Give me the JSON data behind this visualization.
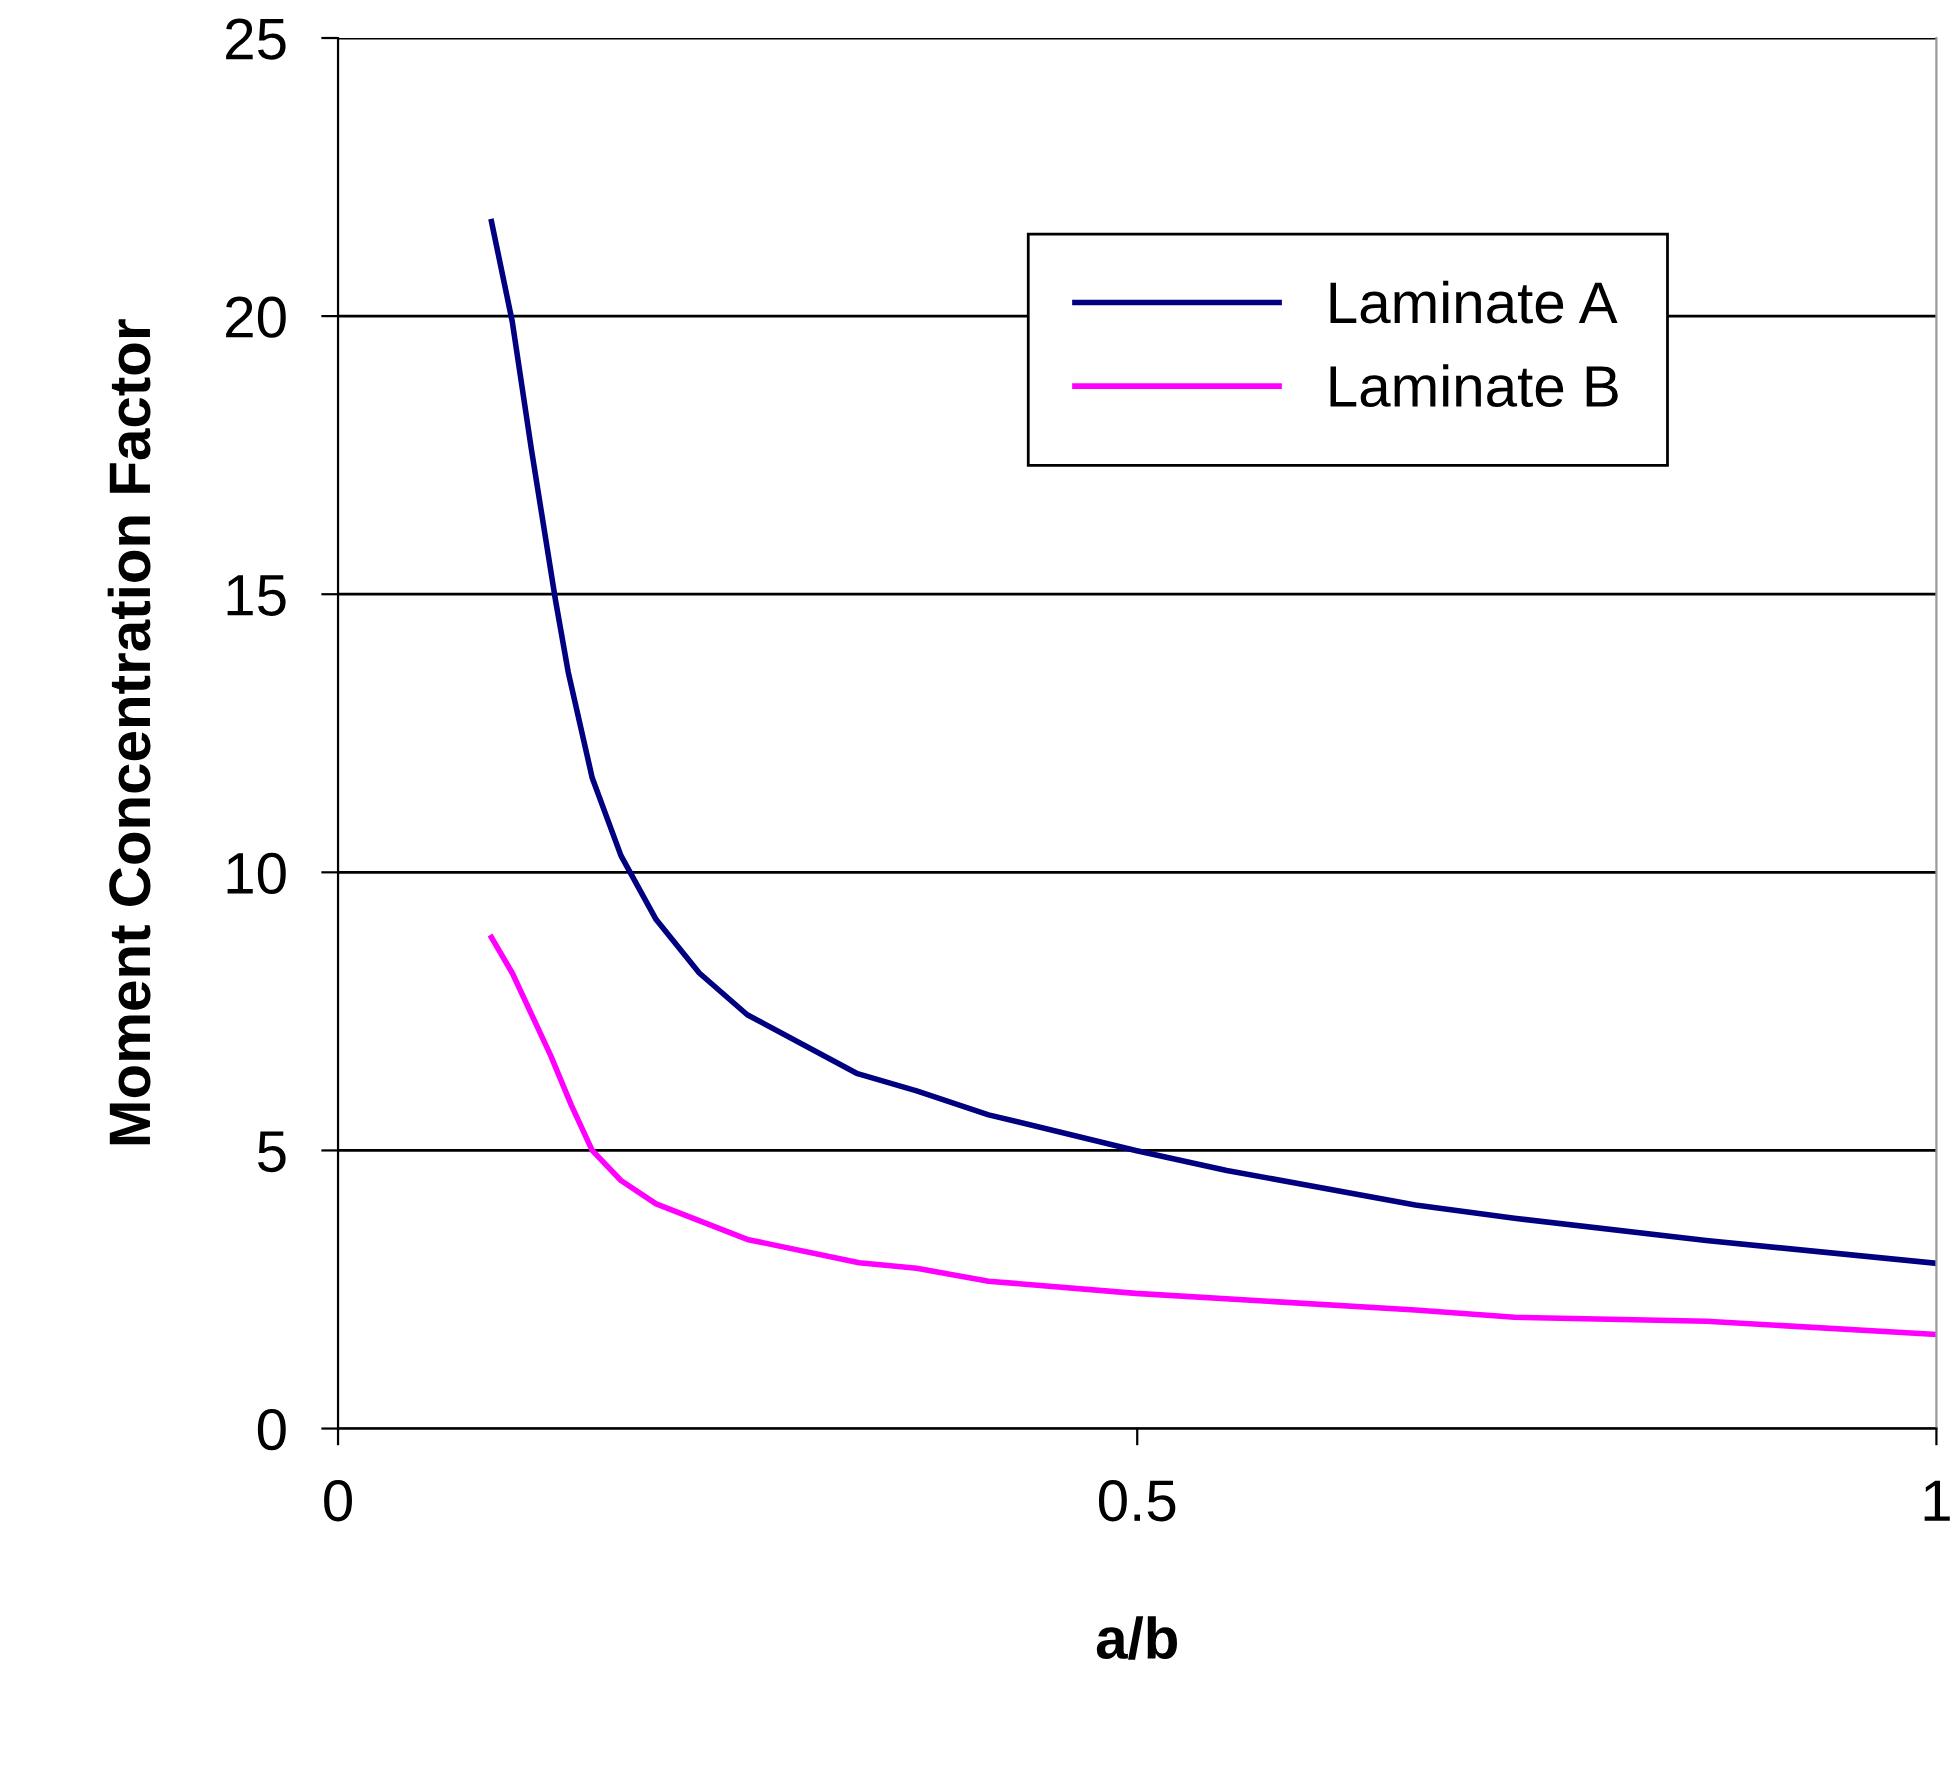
{
  "chart_data": {
    "type": "line",
    "xlabel": "a/b",
    "ylabel": "Moment Concentration Factor",
    "xlim": [
      0,
      1
    ],
    "xticks": [
      0,
      0.5,
      1
    ],
    "ylim": [
      0,
      25
    ],
    "yticks": [
      0,
      5,
      10,
      15,
      20,
      25
    ],
    "grid": "y",
    "legend": "top right",
    "line_style": "solid",
    "marker": "none",
    "series": [
      {
        "name": "Laminate A",
        "color": "#000080",
        "x": [
          0.096,
          0.109,
          0.121,
          0.136,
          0.144,
          0.159,
          0.177,
          0.199,
          0.226,
          0.256,
          0.325,
          0.362,
          0.407,
          0.499,
          0.556,
          0.674,
          0.736,
          0.856,
          1.0
        ],
        "values": [
          21.7,
          19.9,
          17.6,
          14.9,
          13.6,
          11.7,
          10.3,
          9.15,
          8.19,
          7.44,
          6.38,
          6.07,
          5.64,
          5.0,
          4.64,
          4.02,
          3.78,
          3.38,
          2.97
        ]
      },
      {
        "name": "Laminate B",
        "color": "#ff00ff",
        "x": [
          0.096,
          0.109,
          0.133,
          0.146,
          0.159,
          0.177,
          0.199,
          0.256,
          0.326,
          0.362,
          0.407,
          0.499,
          0.674,
          0.736,
          0.856,
          1.0
        ],
        "values": [
          8.83,
          8.19,
          6.71,
          5.81,
          5.0,
          4.46,
          4.04,
          3.4,
          2.98,
          2.88,
          2.65,
          2.43,
          2.13,
          2.0,
          1.93,
          1.69
        ]
      }
    ]
  }
}
